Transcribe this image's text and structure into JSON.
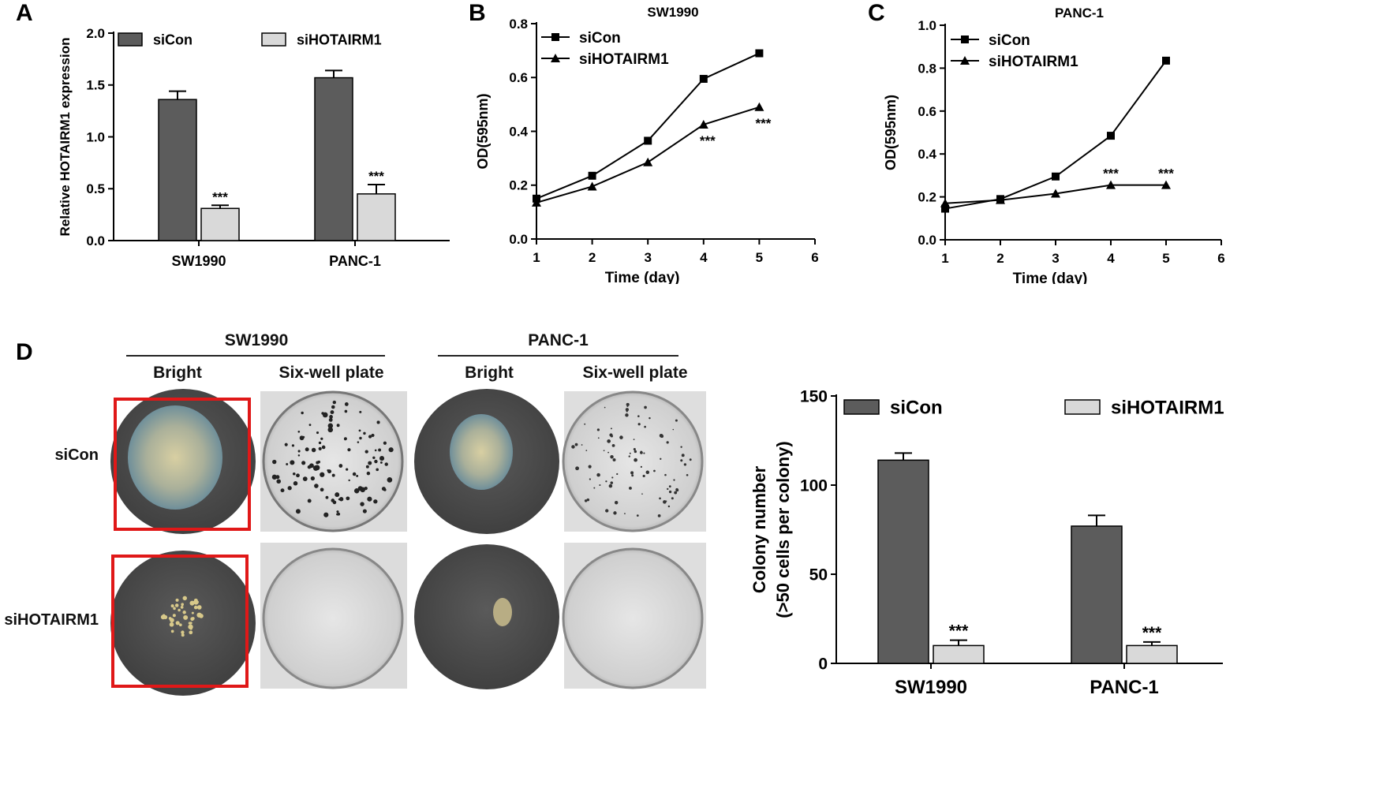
{
  "panels": {
    "a": "A",
    "b": "B",
    "c": "C",
    "d": "D"
  },
  "colors": {
    "siCon_bar": "#5c5c5c",
    "siHOTAIRM1_bar": "#d9d9d9",
    "red_box": "#e01818",
    "dish_dark": "#4f4f4f",
    "plate_light": "#c9c9c9"
  },
  "legend": {
    "siCon": "siCon",
    "siHOTAIRM1": "siHOTAIRM1"
  },
  "chart_data": [
    {
      "id": "A",
      "type": "bar",
      "ylabel": "Relative HOTAIRM1 expression",
      "xlabel": "",
      "ylim": [
        0,
        2.0
      ],
      "yticks": [
        "0.0",
        "0.5",
        "1.0",
        "1.5",
        "2.0"
      ],
      "categories": [
        "SW1990",
        "PANC-1"
      ],
      "series": [
        {
          "name": "siCon",
          "values": [
            1.36,
            1.57
          ],
          "errors": [
            0.08,
            0.07
          ]
        },
        {
          "name": "siHOTAIRM1",
          "values": [
            0.31,
            0.45
          ],
          "errors": [
            0.03,
            0.09
          ]
        }
      ],
      "annotations": [
        "***",
        "***"
      ],
      "legend": "top"
    },
    {
      "id": "B",
      "type": "line",
      "title": "SW1990",
      "xlabel": "Time (day)",
      "ylabel": "OD(595nm)",
      "xlim": [
        1,
        6
      ],
      "ylim": [
        0,
        0.8
      ],
      "xticks": [
        "1",
        "2",
        "3",
        "4",
        "5",
        "6"
      ],
      "yticks": [
        "0.0",
        "0.2",
        "0.4",
        "0.6",
        "0.8"
      ],
      "x": [
        1,
        2,
        3,
        4,
        5
      ],
      "series": [
        {
          "name": "siCon",
          "marker": "square",
          "values": [
            0.15,
            0.235,
            0.365,
            0.595,
            0.69
          ]
        },
        {
          "name": "siHOTAIRM1",
          "marker": "triangle",
          "values": [
            0.135,
            0.195,
            0.285,
            0.425,
            0.49
          ]
        }
      ],
      "annotations": [
        {
          "x": 4,
          "text": "***"
        },
        {
          "x": 5,
          "text": "***"
        }
      ],
      "legend": "top-left"
    },
    {
      "id": "C",
      "type": "line",
      "title": "PANC-1",
      "xlabel": "Time (day)",
      "ylabel": "OD(595nm)",
      "xlim": [
        1,
        6
      ],
      "ylim": [
        0,
        1.0
      ],
      "xticks": [
        "1",
        "2",
        "3",
        "4",
        "5",
        "6"
      ],
      "yticks": [
        "0.0",
        "0.2",
        "0.4",
        "0.6",
        "0.8",
        "1.0"
      ],
      "x": [
        1,
        2,
        3,
        4,
        5
      ],
      "series": [
        {
          "name": "siCon",
          "marker": "square",
          "values": [
            0.145,
            0.19,
            0.295,
            0.485,
            0.835
          ]
        },
        {
          "name": "siHOTAIRM1",
          "marker": "triangle",
          "values": [
            0.17,
            0.185,
            0.215,
            0.255,
            0.255
          ]
        }
      ],
      "annotations": [
        {
          "x": 4,
          "text": "***"
        },
        {
          "x": 5,
          "text": "***"
        }
      ],
      "legend": "top-left"
    },
    {
      "id": "D",
      "type": "bar",
      "ylabel_lines": [
        "Colony number",
        "(>50 cells per colony)"
      ],
      "xlabel": "",
      "ylim": [
        0,
        150
      ],
      "yticks": [
        "0",
        "50",
        "100",
        "150"
      ],
      "categories": [
        "SW1990",
        "PANC-1"
      ],
      "series": [
        {
          "name": "siCon",
          "values": [
            114,
            77
          ],
          "errors": [
            4,
            6
          ]
        },
        {
          "name": "siHOTAIRM1",
          "values": [
            10,
            10
          ],
          "errors": [
            3,
            2
          ]
        }
      ],
      "annotations": [
        "***",
        "***"
      ],
      "legend": "top"
    }
  ],
  "photo_grid": {
    "groups": [
      "SW1990",
      "PANC-1"
    ],
    "columns": [
      "Bright",
      "Six-well plate",
      "Bright",
      "Six-well plate"
    ],
    "rows": [
      "siCon",
      "siHOTAIRM1"
    ]
  }
}
